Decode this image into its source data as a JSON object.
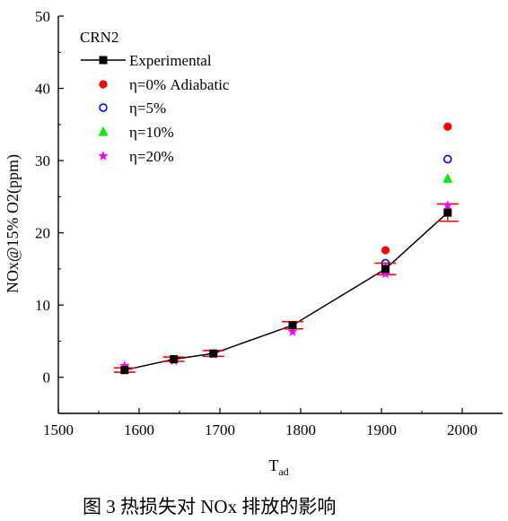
{
  "chart_data": {
    "type": "scatter",
    "legend_title": "CRN2",
    "xlabel": "T",
    "xlabel_sub": "ad",
    "ylabel": "NOx@15% O2(ppm)",
    "xlim": [
      1500,
      2050
    ],
    "ylim": [
      -5,
      50
    ],
    "xticks": [
      1500,
      1600,
      1700,
      1800,
      1900,
      2000
    ],
    "yticks": [
      0,
      10,
      20,
      30,
      40,
      50
    ],
    "legend_position": "top-left",
    "grid": false,
    "series": [
      {
        "name": "Experimental",
        "marker": "square",
        "color": "#000000",
        "line": true,
        "x": [
          1582,
          1643,
          1692,
          1790,
          1905,
          1982
        ],
        "y": [
          1.0,
          2.5,
          3.3,
          7.2,
          15.0,
          22.8
        ],
        "error": [
          0.3,
          0.3,
          0.4,
          0.5,
          0.8,
          1.2
        ]
      },
      {
        "name": "η=0% Adiabatic",
        "marker": "circle-filled",
        "color": "#ff0000",
        "x": [
          1905,
          1982
        ],
        "y": [
          17.6,
          34.7
        ]
      },
      {
        "name": "η=5%",
        "marker": "circle-open",
        "color": "#0000ff",
        "x": [
          1905,
          1982
        ],
        "y": [
          15.8,
          30.2
        ]
      },
      {
        "name": "η=10%",
        "marker": "triangle",
        "color": "#00ee00",
        "x": [
          1982
        ],
        "y": [
          27.5
        ]
      },
      {
        "name": "η=20%",
        "marker": "star",
        "color": "#ff00ff",
        "x": [
          1582,
          1643,
          1692,
          1790,
          1905,
          1982
        ],
        "y": [
          1.6,
          2.3,
          3.2,
          6.3,
          14.3,
          23.8
        ]
      }
    ],
    "colors": {
      "error_bar": "#ff0000",
      "axis": "#000000"
    }
  },
  "caption": "图 3  热损失对 NOx 排放的影响"
}
